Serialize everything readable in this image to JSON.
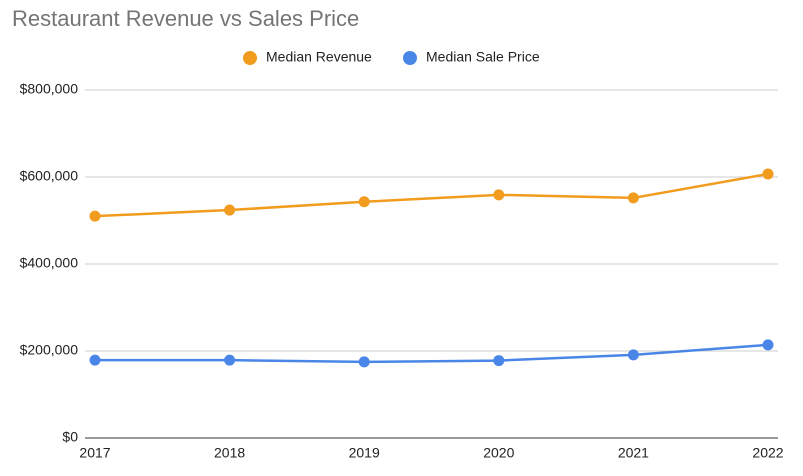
{
  "chart_data": {
    "type": "line",
    "title": "Restaurant Revenue vs Sales Price",
    "categories": [
      "2017",
      "2018",
      "2019",
      "2020",
      "2021",
      "2022"
    ],
    "series": [
      {
        "name": "Median Revenue",
        "color": "#f29c1f",
        "values": [
          510000,
          524000,
          543000,
          559000,
          552000,
          607000
        ]
      },
      {
        "name": "Median Sale Price",
        "color": "#4a86e8",
        "values": [
          179000,
          179000,
          175000,
          178000,
          191000,
          214000
        ]
      }
    ],
    "ylim": [
      0,
      800000
    ],
    "yticks": [
      {
        "value": 0,
        "label": "$0"
      },
      {
        "value": 200000,
        "label": "$200,000"
      },
      {
        "value": 400000,
        "label": "$400,000"
      },
      {
        "value": 600000,
        "label": "$600,000"
      },
      {
        "value": 800000,
        "label": "$800,000"
      }
    ],
    "grid": true
  }
}
